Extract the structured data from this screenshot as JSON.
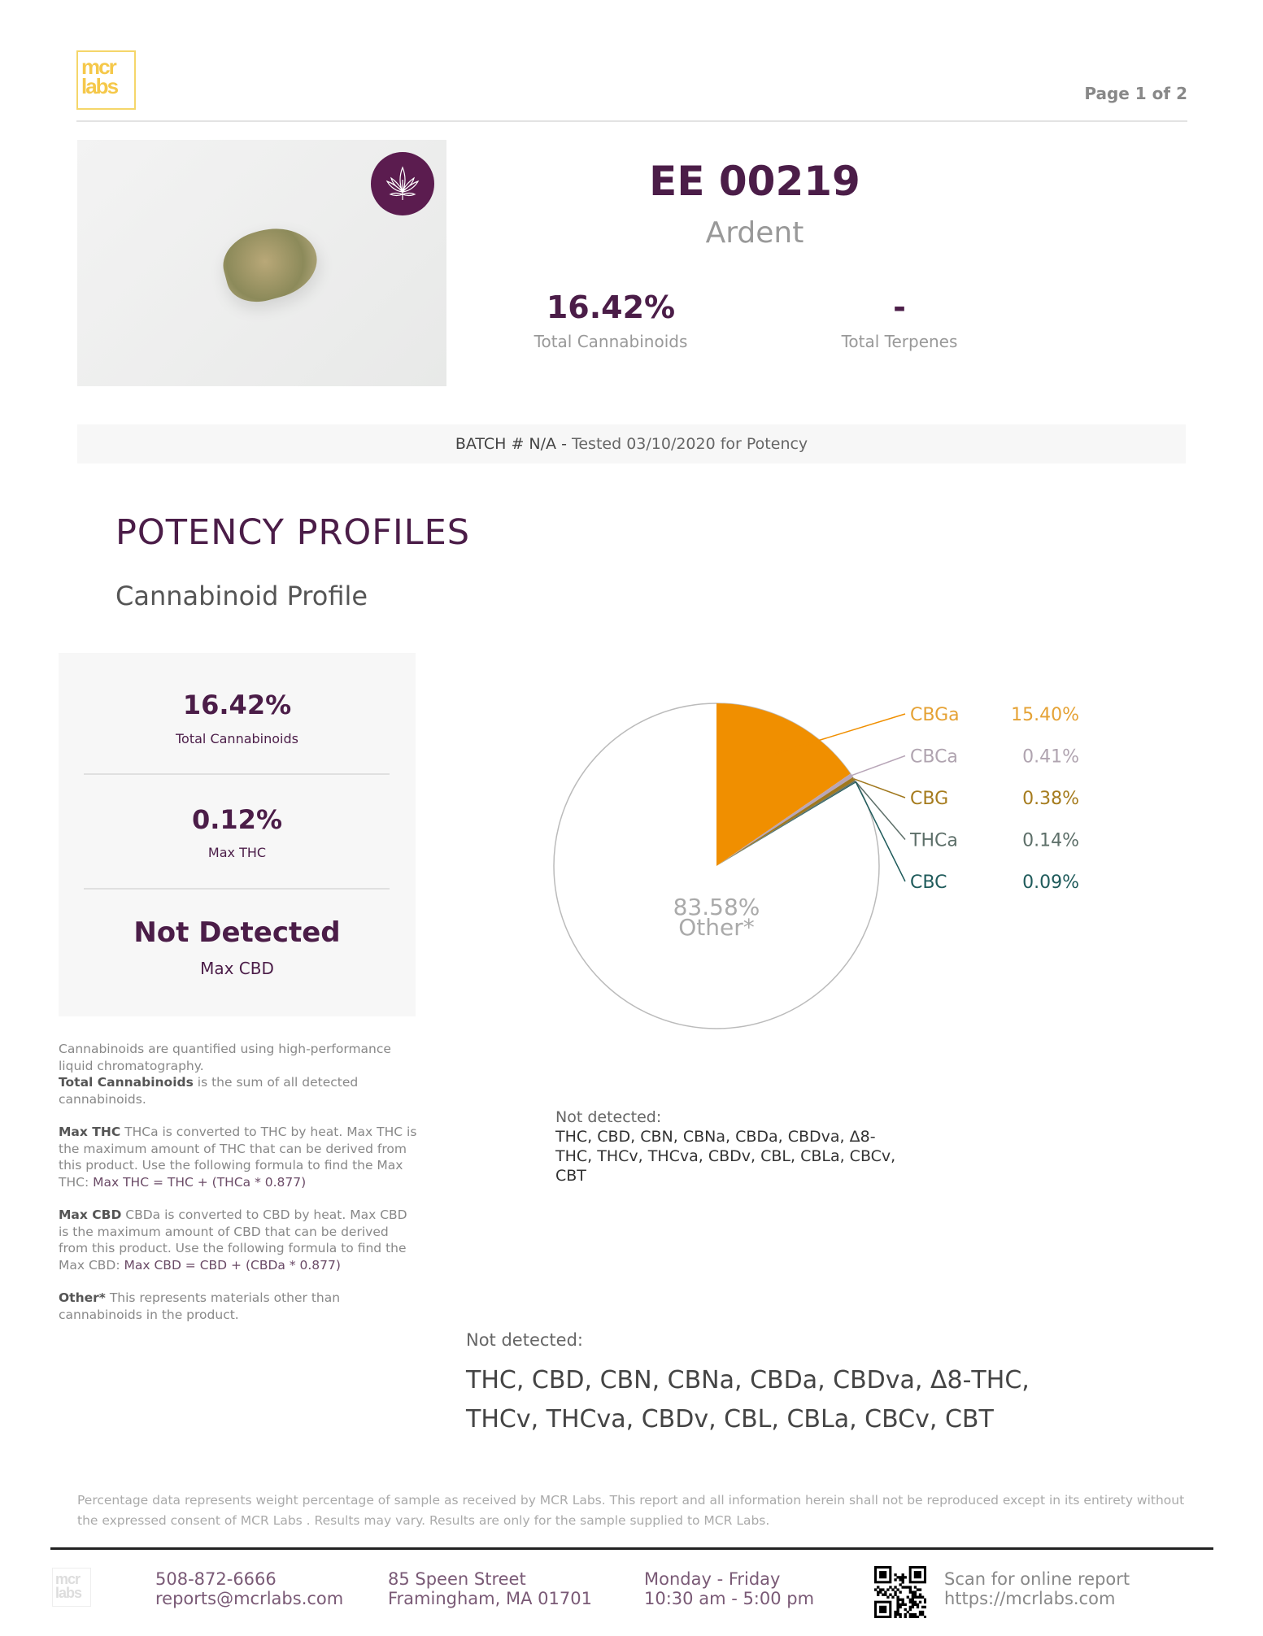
{
  "header": {
    "logo_text": "mcr labs",
    "page": "Page 1 of 2"
  },
  "sample": {
    "id": "EE 00219",
    "strain": "Ardent",
    "total_cannabinoids": "16.42%",
    "total_cannabinoids_label": "Total Cannabinoids",
    "total_terpenes": "-",
    "total_terpenes_label": "Total Terpenes"
  },
  "batch": {
    "label": "BATCH # N/A -",
    "tested": "Tested 03/10/2020 for Potency"
  },
  "section": {
    "title": "POTENCY PROFILES",
    "subtitle": "Cannabinoid Profile"
  },
  "summary": [
    {
      "value": "16.42%",
      "label": "Total Cannabinoids"
    },
    {
      "value": "0.12%",
      "label": "Max THC"
    },
    {
      "value": "Not Detected",
      "label": "Max CBD"
    }
  ],
  "notes": {
    "p1a": "Cannabinoids are quantified using high-performance liquid chromatography.",
    "p1b_bold": "Total Cannabinoids",
    "p1b": " is the sum of all detected cannabinoids.",
    "p2_bold": "Max THC",
    "p2": " THCa is converted to THC by heat. Max THC is the maximum amount of THC that can be derived from this product. Use the following formula to find the Max THC: ",
    "p2_formula": "Max THC = THC + (THCa * 0.877)",
    "p3_bold": "Max CBD",
    "p3": " CBDa is converted to CBD by heat. Max CBD is the maximum amount of CBD that can be derived from this product. Use the following formula to find the Max CBD: ",
    "p3_formula": "Max CBD = CBD + (CBDa * 0.877)",
    "p4_bold": "Other*",
    "p4": " This represents materials other than cannabinoids in the product."
  },
  "chart_data": {
    "type": "pie",
    "slices": [
      {
        "name": "CBGa",
        "value": 15.4,
        "label": "15.40%",
        "color": "#f08f00",
        "text_color": "#e5a235"
      },
      {
        "name": "CBCa",
        "value": 0.41,
        "label": "0.41%",
        "color": "#b8a6b8",
        "text_color": "#b0a4b0"
      },
      {
        "name": "CBG",
        "value": 0.38,
        "label": "0.38%",
        "color": "#a0781e",
        "text_color": "#a67c1e"
      },
      {
        "name": "THCa",
        "value": 0.14,
        "label": "0.14%",
        "color": "#5d6f69",
        "text_color": "#5d6f69"
      },
      {
        "name": "CBC",
        "value": 0.09,
        "label": "0.09%",
        "color": "#1f5b5b",
        "text_color": "#1f5b5b"
      }
    ],
    "other": {
      "value": 83.58,
      "label": "83.58%",
      "name": "Other*",
      "color": "#ffffff",
      "stroke": "#bbbbbb"
    }
  },
  "not_detected": {
    "label": "Not detected:",
    "list": "THC, CBD, CBN, CBNa, CBDa, CBDva, Δ8-THC, THCv, THCva, CBDv, CBL, CBLa, CBCv, CBT",
    "list_line1": "THC, CBD, CBN, CBNa, CBDa, CBDva, Δ8-THC,",
    "list_line2": "THCv, THCva, CBDv, CBL, CBLa, CBCv, CBT"
  },
  "disclaimer": "Percentage data represents weight percentage of sample as received by MCR Labs. This report and all information herein shall not be reproduced except in its entirety without the expressed consent of MCR Labs . Results may vary. Results are only for the sample supplied to MCR Labs.",
  "footer": {
    "phone": "508-872-6666",
    "email": "reports@mcrlabs.com",
    "street": "85 Speen Street",
    "city": "Framingham, MA 01701",
    "days": "Monday - Friday",
    "hours": "10:30 am - 5:00 pm",
    "scan": "Scan for online report",
    "url": "https://mcrlabs.com"
  },
  "colors": {
    "brand": "#4b1d48",
    "logo": "#f5c84a"
  }
}
